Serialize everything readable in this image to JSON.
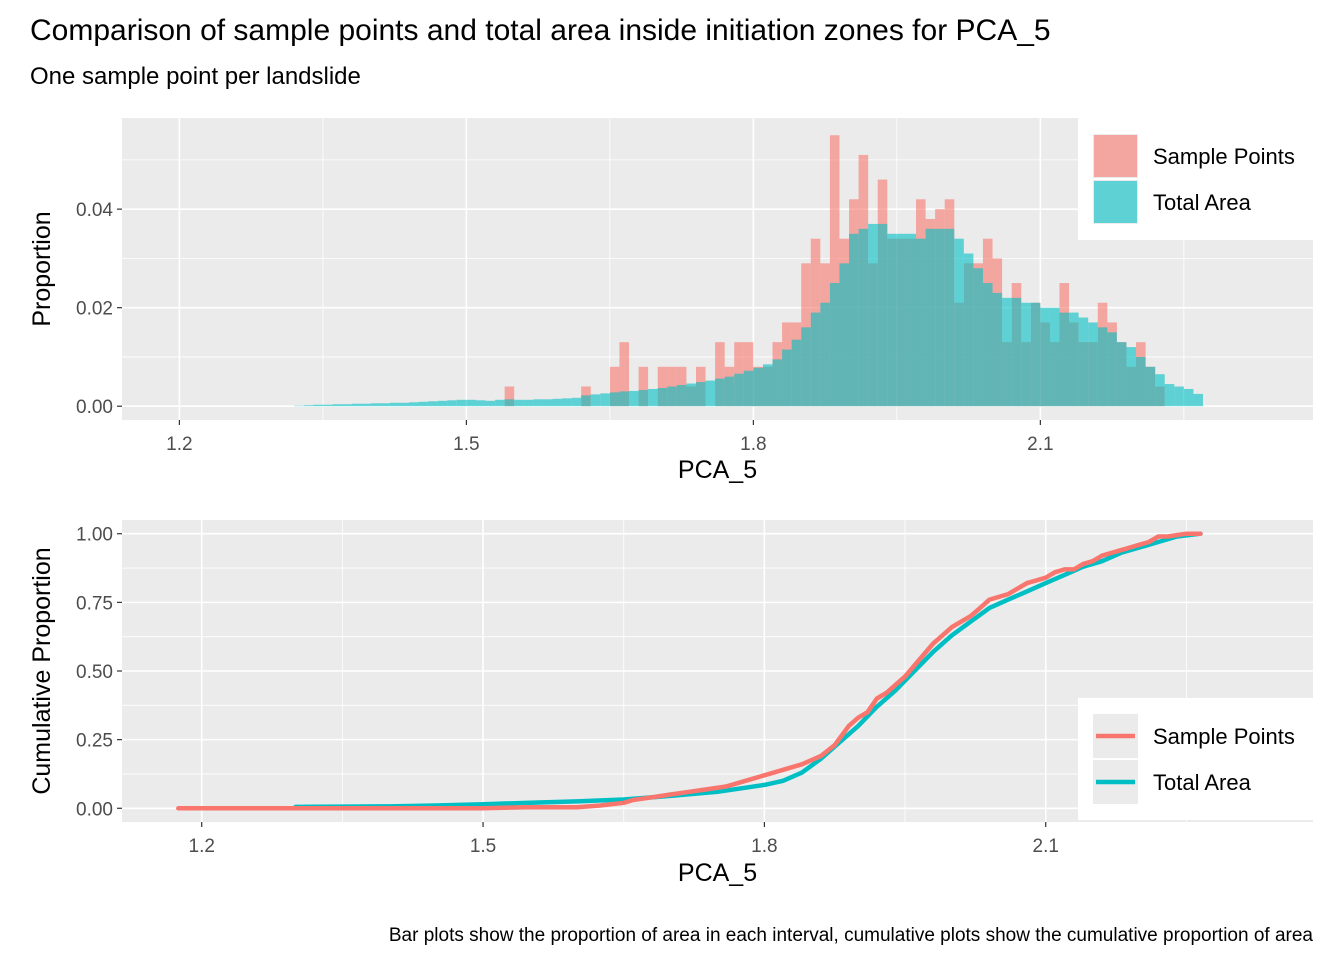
{
  "title": "Comparison of sample points and total area inside initiation zones for PCA_5",
  "subtitle": "One sample point per landslide",
  "caption": "Bar plots show the proportion of area in each interval, cumulative plots show the cumulative proportion of area",
  "colors": {
    "sample_points": "#F8766D",
    "total_area": "#00BFC4",
    "panel_background": "#EBEBEB",
    "grid": "#FFFFFF"
  },
  "chart_data": [
    {
      "type": "bar",
      "title": "",
      "xlabel": "PCA_5",
      "ylabel": "Proportion",
      "xlim": [
        1.14,
        2.385
      ],
      "ylim": [
        -0.0028,
        0.0585
      ],
      "xticks": [
        1.2,
        1.5,
        1.8,
        2.1
      ],
      "xtick_labels": [
        "1.2",
        "1.5",
        "1.8",
        "2.1"
      ],
      "yticks": [
        0,
        0.02,
        0.04
      ],
      "ytick_labels": [
        "0.00",
        "0.02",
        "0.04"
      ],
      "grid": true,
      "legend_position": "top-right",
      "bin_width": 0.01,
      "bar_alpha": 0.6,
      "series": [
        {
          "name": "Sample Points",
          "color": "#F8766D",
          "x": [
            1.545,
            1.625,
            1.655,
            1.665,
            1.685,
            1.705,
            1.715,
            1.725,
            1.735,
            1.745,
            1.765,
            1.775,
            1.785,
            1.795,
            1.805,
            1.815,
            1.825,
            1.835,
            1.845,
            1.855,
            1.865,
            1.875,
            1.885,
            1.895,
            1.905,
            1.915,
            1.925,
            1.935,
            1.945,
            1.955,
            1.965,
            1.975,
            1.985,
            1.995,
            2.005,
            2.015,
            2.025,
            2.035,
            2.045,
            2.055,
            2.065,
            2.075,
            2.085,
            2.095,
            2.105,
            2.115,
            2.125,
            2.135,
            2.145,
            2.155,
            2.165,
            2.175,
            2.185,
            2.195,
            2.205,
            2.215,
            2.225
          ],
          "values": [
            0.004,
            0.004,
            0.008,
            0.013,
            0.008,
            0.008,
            0.008,
            0.008,
            0.004,
            0.008,
            0.013,
            0.008,
            0.013,
            0.013,
            0.008,
            0.008,
            0.013,
            0.017,
            0.017,
            0.029,
            0.034,
            0.029,
            0.055,
            0.034,
            0.042,
            0.051,
            0.029,
            0.046,
            0.034,
            0.034,
            0.034,
            0.042,
            0.038,
            0.04,
            0.042,
            0.021,
            0.029,
            0.029,
            0.034,
            0.03,
            0.013,
            0.025,
            0.013,
            0.021,
            0.017,
            0.013,
            0.025,
            0.017,
            0.013,
            0.013,
            0.021,
            0.017,
            0.013,
            0.008,
            0.013,
            0.008,
            0.004
          ]
        },
        {
          "name": "Total Area",
          "color": "#00BFC4",
          "x": [
            1.325,
            1.335,
            1.345,
            1.355,
            1.365,
            1.375,
            1.385,
            1.395,
            1.405,
            1.415,
            1.425,
            1.435,
            1.445,
            1.455,
            1.465,
            1.475,
            1.485,
            1.495,
            1.505,
            1.515,
            1.525,
            1.535,
            1.545,
            1.555,
            1.565,
            1.575,
            1.585,
            1.595,
            1.605,
            1.615,
            1.625,
            1.635,
            1.645,
            1.655,
            1.665,
            1.675,
            1.685,
            1.695,
            1.705,
            1.715,
            1.725,
            1.735,
            1.745,
            1.755,
            1.765,
            1.775,
            1.785,
            1.795,
            1.805,
            1.815,
            1.825,
            1.835,
            1.845,
            1.855,
            1.865,
            1.875,
            1.885,
            1.895,
            1.905,
            1.915,
            1.925,
            1.935,
            1.945,
            1.955,
            1.965,
            1.975,
            1.985,
            1.995,
            2.005,
            2.015,
            2.025,
            2.035,
            2.045,
            2.055,
            2.065,
            2.075,
            2.085,
            2.095,
            2.105,
            2.115,
            2.125,
            2.135,
            2.145,
            2.155,
            2.165,
            2.175,
            2.185,
            2.195,
            2.205,
            2.215,
            2.225,
            2.235,
            2.245,
            2.255,
            2.265
          ],
          "values": [
            0.0001,
            0.0002,
            0.0003,
            0.0003,
            0.0004,
            0.0004,
            0.0005,
            0.0005,
            0.0006,
            0.0006,
            0.0007,
            0.0007,
            0.0008,
            0.0009,
            0.001,
            0.0011,
            0.0012,
            0.0013,
            0.0013,
            0.0012,
            0.0011,
            0.0013,
            0.0014,
            0.0013,
            0.0013,
            0.0014,
            0.0014,
            0.0015,
            0.0016,
            0.0017,
            0.0022,
            0.0024,
            0.0026,
            0.0028,
            0.003,
            0.0031,
            0.0033,
            0.0035,
            0.0037,
            0.004,
            0.0043,
            0.0046,
            0.0049,
            0.0052,
            0.0056,
            0.006,
            0.0066,
            0.0072,
            0.0078,
            0.0085,
            0.0095,
            0.0115,
            0.0135,
            0.016,
            0.019,
            0.021,
            0.025,
            0.029,
            0.035,
            0.036,
            0.037,
            0.037,
            0.035,
            0.035,
            0.035,
            0.034,
            0.036,
            0.036,
            0.036,
            0.034,
            0.031,
            0.028,
            0.025,
            0.023,
            0.022,
            0.022,
            0.021,
            0.021,
            0.02,
            0.02,
            0.019,
            0.019,
            0.018,
            0.017,
            0.016,
            0.015,
            0.013,
            0.012,
            0.01,
            0.008,
            0.0065,
            0.0045,
            0.004,
            0.0035,
            0.0025
          ]
        }
      ]
    },
    {
      "type": "line",
      "title": "",
      "xlabel": "PCA_5",
      "ylabel": "Cumulative Proportion",
      "xlim": [
        1.115,
        2.385
      ],
      "ylim": [
        -0.05,
        1.05
      ],
      "xticks": [
        1.2,
        1.5,
        1.8,
        2.1
      ],
      "xtick_labels": [
        "1.2",
        "1.5",
        "1.8",
        "2.1"
      ],
      "yticks": [
        0,
        0.25,
        0.5,
        0.75,
        1.0
      ],
      "ytick_labels": [
        "0.00",
        "0.25",
        "0.50",
        "0.75",
        "1.00"
      ],
      "grid": true,
      "legend_position": "bottom-right",
      "series": [
        {
          "name": "Sample Points",
          "color": "#F8766D",
          "x": [
            1.175,
            1.3,
            1.4,
            1.5,
            1.545,
            1.6,
            1.625,
            1.65,
            1.66,
            1.68,
            1.7,
            1.72,
            1.74,
            1.76,
            1.78,
            1.8,
            1.82,
            1.84,
            1.86,
            1.875,
            1.89,
            1.9,
            1.91,
            1.92,
            1.93,
            1.94,
            1.95,
            1.96,
            1.97,
            1.98,
            1.99,
            2.0,
            2.01,
            2.02,
            2.03,
            2.04,
            2.05,
            2.06,
            2.07,
            2.08,
            2.09,
            2.1,
            2.11,
            2.12,
            2.13,
            2.14,
            2.15,
            2.16,
            2.17,
            2.18,
            2.19,
            2.2,
            2.21,
            2.22,
            2.23,
            2.25,
            2.265
          ],
          "values": [
            0.0,
            0.0,
            0.0,
            0.0,
            0.004,
            0.004,
            0.01,
            0.02,
            0.03,
            0.04,
            0.05,
            0.06,
            0.07,
            0.08,
            0.1,
            0.12,
            0.14,
            0.16,
            0.19,
            0.23,
            0.3,
            0.33,
            0.35,
            0.4,
            0.42,
            0.45,
            0.48,
            0.52,
            0.56,
            0.6,
            0.63,
            0.66,
            0.68,
            0.7,
            0.73,
            0.76,
            0.77,
            0.78,
            0.8,
            0.82,
            0.83,
            0.84,
            0.86,
            0.87,
            0.87,
            0.89,
            0.9,
            0.92,
            0.93,
            0.94,
            0.95,
            0.96,
            0.97,
            0.99,
            0.99,
            1.0,
            1.0
          ]
        },
        {
          "name": "Total Area",
          "color": "#00BFC4",
          "x": [
            1.3,
            1.35,
            1.4,
            1.45,
            1.5,
            1.55,
            1.6,
            1.65,
            1.7,
            1.75,
            1.8,
            1.82,
            1.84,
            1.86,
            1.88,
            1.9,
            1.92,
            1.94,
            1.96,
            1.98,
            2.0,
            2.02,
            2.04,
            2.06,
            2.08,
            2.1,
            2.12,
            2.14,
            2.16,
            2.18,
            2.2,
            2.22,
            2.24,
            2.265
          ],
          "values": [
            0.005,
            0.006,
            0.007,
            0.01,
            0.015,
            0.02,
            0.025,
            0.032,
            0.045,
            0.06,
            0.085,
            0.1,
            0.13,
            0.18,
            0.24,
            0.3,
            0.37,
            0.43,
            0.5,
            0.57,
            0.63,
            0.68,
            0.73,
            0.76,
            0.79,
            0.82,
            0.85,
            0.88,
            0.9,
            0.93,
            0.95,
            0.97,
            0.99,
            1.0
          ]
        }
      ]
    }
  ]
}
